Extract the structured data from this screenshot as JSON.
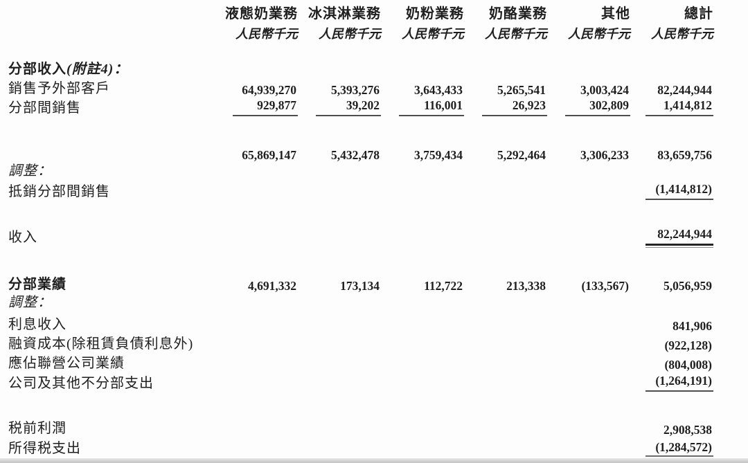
{
  "header": {
    "columns": [
      "液態奶業務",
      "冰淇淋業務",
      "奶粉業務",
      "奶酪業務",
      "其他",
      "總計"
    ],
    "unit": "人民幣千元"
  },
  "body": {
    "segment_revenue_heading_main": "分部收入",
    "segment_revenue_heading_note": "(附註4)：",
    "sales_external": {
      "label": "銷售予外部客戶",
      "values": [
        "64,939,270",
        "5,393,276",
        "3,643,433",
        "5,265,541",
        "3,003,424",
        "82,244,944"
      ]
    },
    "intersegment_sales": {
      "label": "分部間銷售",
      "values": [
        "929,877",
        "39,202",
        "116,001",
        "26,923",
        "302,809",
        "1,414,812"
      ]
    },
    "subtotal": {
      "values": [
        "65,869,147",
        "5,432,478",
        "3,759,434",
        "5,292,464",
        "3,306,233",
        "83,659,756"
      ]
    },
    "adjustments_heading_1": "調整：",
    "elimination": {
      "label": "抵銷分部間銷售",
      "total": "(1,414,812)"
    },
    "revenue": {
      "label": "收入",
      "total": "82,244,944"
    },
    "segment_results": {
      "label": "分部業績",
      "values": [
        "4,691,332",
        "173,134",
        "112,722",
        "213,338",
        "(133,567)",
        "5,056,959"
      ]
    },
    "adjustments_heading_2": "調整：",
    "interest_income": {
      "label": "利息收入",
      "total": "841,906"
    },
    "finance_costs": {
      "label": "融資成本(除租賃負債利息外)",
      "total": "(922,128)"
    },
    "share_of_associates": {
      "label": "應佔聯營公司業績",
      "total": "(804,008)"
    },
    "corporate_unallocated": {
      "label": "公司及其他不分部支出",
      "total": "(1,264,191)"
    },
    "profit_before_tax": {
      "label": "税前利潤",
      "total": "2,908,538"
    },
    "income_tax_expense": {
      "label": "所得税支出",
      "total": "(1,284,572)"
    }
  }
}
